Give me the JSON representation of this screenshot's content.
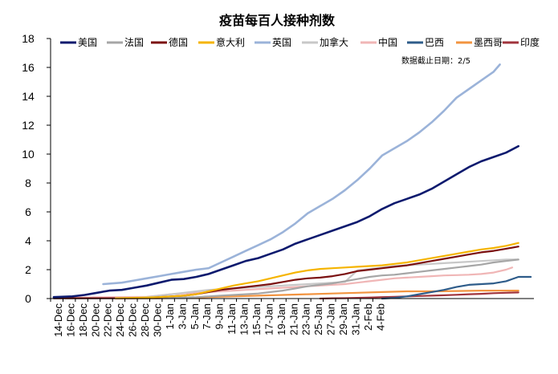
{
  "chart_data": {
    "type": "line",
    "title": "疫苗每百人接种剂数",
    "annotation": "数据截止日期：2/5",
    "xlabel": "",
    "ylabel": "",
    "ylim": [
      0,
      18
    ],
    "yticks": [
      0,
      2,
      4,
      6,
      8,
      10,
      12,
      14,
      16,
      18
    ],
    "grid": false,
    "legend_position": "top",
    "x_ticks": [
      "14-Dec",
      "16-Dec",
      "18-Dec",
      "20-Dec",
      "22-Dec",
      "24-Dec",
      "26-Dec",
      "28-Dec",
      "30-Dec",
      "1-Jan",
      "3-Jan",
      "5-Jan",
      "7-Jan",
      "9-Jan",
      "11-Jan",
      "13-Jan",
      "15-Jan",
      "17-Jan",
      "19-Jan",
      "21-Jan",
      "23-Jan",
      "25-Jan",
      "27-Jan",
      "29-Jan",
      "31-Jan",
      "2-Feb",
      "4-Feb"
    ],
    "series": [
      {
        "name": "美国",
        "color": "#0c1a6e",
        "width": 2.6,
        "points": [
          [
            0,
            0.1
          ],
          [
            3,
            0.15
          ],
          [
            5,
            0.25
          ],
          [
            7,
            0.4
          ],
          [
            9,
            0.55
          ],
          [
            11,
            0.6
          ],
          [
            13,
            0.75
          ],
          [
            15,
            0.9
          ],
          [
            17,
            1.1
          ],
          [
            19,
            1.3
          ],
          [
            21,
            1.35
          ],
          [
            23,
            1.5
          ],
          [
            25,
            1.7
          ],
          [
            27,
            2.0
          ],
          [
            29,
            2.3
          ],
          [
            31,
            2.6
          ],
          [
            33,
            2.8
          ],
          [
            35,
            3.1
          ],
          [
            37,
            3.4
          ],
          [
            39,
            3.8
          ],
          [
            41,
            4.1
          ],
          [
            43,
            4.4
          ],
          [
            45,
            4.7
          ],
          [
            47,
            5.0
          ],
          [
            49,
            5.3
          ],
          [
            51,
            5.7
          ],
          [
            53,
            6.2
          ],
          [
            55,
            6.6
          ],
          [
            57,
            6.9
          ],
          [
            59,
            7.2
          ],
          [
            61,
            7.6
          ],
          [
            63,
            8.1
          ],
          [
            65,
            8.6
          ],
          [
            67,
            9.1
          ],
          [
            69,
            9.5
          ],
          [
            71,
            9.8
          ],
          [
            73,
            10.1
          ],
          [
            75,
            10.55
          ]
        ]
      },
      {
        "name": "法国",
        "color": "#a6a6a6",
        "width": 2.2,
        "points": [
          [
            0,
            0.02
          ],
          [
            15,
            0.02
          ],
          [
            17,
            0.03
          ],
          [
            19,
            0.05
          ],
          [
            21,
            0.07
          ],
          [
            23,
            0.1
          ],
          [
            25,
            0.15
          ],
          [
            27,
            0.2
          ],
          [
            29,
            0.25
          ],
          [
            31,
            0.3
          ],
          [
            33,
            0.35
          ],
          [
            35,
            0.45
          ],
          [
            37,
            0.55
          ],
          [
            39,
            0.7
          ],
          [
            41,
            0.85
          ],
          [
            43,
            0.95
          ],
          [
            45,
            1.05
          ],
          [
            47,
            1.2
          ],
          [
            49,
            1.35
          ],
          [
            51,
            1.5
          ],
          [
            53,
            1.6
          ],
          [
            55,
            1.65
          ],
          [
            57,
            1.75
          ],
          [
            59,
            1.85
          ],
          [
            61,
            1.95
          ],
          [
            63,
            2.05
          ],
          [
            65,
            2.15
          ],
          [
            67,
            2.25
          ],
          [
            69,
            2.35
          ],
          [
            71,
            2.5
          ],
          [
            73,
            2.6
          ],
          [
            75,
            2.7
          ]
        ]
      },
      {
        "name": "德国",
        "color": "#7b1010",
        "width": 2.2,
        "points": [
          [
            0,
            0.02
          ],
          [
            13,
            0.03
          ],
          [
            15,
            0.05
          ],
          [
            17,
            0.1
          ],
          [
            19,
            0.15
          ],
          [
            21,
            0.2
          ],
          [
            23,
            0.3
          ],
          [
            25,
            0.45
          ],
          [
            27,
            0.6
          ],
          [
            29,
            0.7
          ],
          [
            31,
            0.8
          ],
          [
            33,
            0.9
          ],
          [
            35,
            1.0
          ],
          [
            37,
            1.15
          ],
          [
            39,
            1.3
          ],
          [
            41,
            1.4
          ],
          [
            43,
            1.45
          ],
          [
            45,
            1.55
          ],
          [
            47,
            1.7
          ],
          [
            49,
            1.9
          ],
          [
            51,
            2.0
          ],
          [
            53,
            2.1
          ],
          [
            55,
            2.2
          ],
          [
            57,
            2.3
          ],
          [
            59,
            2.45
          ],
          [
            61,
            2.6
          ],
          [
            63,
            2.75
          ],
          [
            65,
            2.9
          ],
          [
            67,
            3.05
          ],
          [
            69,
            3.2
          ],
          [
            71,
            3.3
          ],
          [
            73,
            3.45
          ],
          [
            75,
            3.6
          ]
        ]
      },
      {
        "name": "意大利",
        "color": "#f5b400",
        "width": 2.2,
        "points": [
          [
            10,
            0.02
          ],
          [
            13,
            0.05
          ],
          [
            15,
            0.07
          ],
          [
            17,
            0.1
          ],
          [
            19,
            0.15
          ],
          [
            21,
            0.2
          ],
          [
            23,
            0.3
          ],
          [
            25,
            0.5
          ],
          [
            27,
            0.7
          ],
          [
            29,
            0.9
          ],
          [
            31,
            1.05
          ],
          [
            33,
            1.2
          ],
          [
            35,
            1.4
          ],
          [
            37,
            1.6
          ],
          [
            39,
            1.8
          ],
          [
            41,
            1.95
          ],
          [
            43,
            2.05
          ],
          [
            45,
            2.1
          ],
          [
            47,
            2.15
          ],
          [
            49,
            2.2
          ],
          [
            51,
            2.25
          ],
          [
            53,
            2.3
          ],
          [
            55,
            2.4
          ],
          [
            57,
            2.5
          ],
          [
            59,
            2.65
          ],
          [
            61,
            2.8
          ],
          [
            63,
            2.95
          ],
          [
            65,
            3.1
          ],
          [
            67,
            3.25
          ],
          [
            69,
            3.4
          ],
          [
            71,
            3.5
          ],
          [
            73,
            3.65
          ],
          [
            75,
            3.85
          ]
        ]
      },
      {
        "name": "英国",
        "color": "#9bb3d9",
        "width": 2.6,
        "points": [
          [
            8,
            1.0
          ],
          [
            11,
            1.1
          ],
          [
            13,
            1.25
          ],
          [
            15,
            1.4
          ],
          [
            17,
            1.55
          ],
          [
            19,
            1.7
          ],
          [
            21,
            1.85
          ],
          [
            23,
            2.0
          ],
          [
            25,
            2.1
          ],
          [
            27,
            2.5
          ],
          [
            29,
            2.9
          ],
          [
            31,
            3.3
          ],
          [
            33,
            3.7
          ],
          [
            35,
            4.1
          ],
          [
            37,
            4.6
          ],
          [
            39,
            5.2
          ],
          [
            41,
            5.9
          ],
          [
            43,
            6.4
          ],
          [
            45,
            6.9
          ],
          [
            47,
            7.5
          ],
          [
            49,
            8.2
          ],
          [
            51,
            9.0
          ],
          [
            53,
            9.9
          ],
          [
            55,
            10.4
          ],
          [
            57,
            10.9
          ],
          [
            59,
            11.5
          ],
          [
            61,
            12.2
          ],
          [
            63,
            13.0
          ],
          [
            65,
            13.9
          ],
          [
            67,
            14.5
          ],
          [
            69,
            15.1
          ],
          [
            71,
            15.7
          ],
          [
            72,
            16.2
          ]
        ]
      },
      {
        "name": "加拿大",
        "color": "#c8c8c8",
        "width": 2.2,
        "points": [
          [
            0,
            0.02
          ],
          [
            13,
            0.03
          ],
          [
            15,
            0.1
          ],
          [
            17,
            0.2
          ],
          [
            19,
            0.3
          ],
          [
            21,
            0.4
          ],
          [
            23,
            0.5
          ],
          [
            25,
            0.6
          ],
          [
            27,
            0.65
          ],
          [
            29,
            0.7
          ],
          [
            31,
            0.75
          ],
          [
            33,
            0.8
          ],
          [
            35,
            0.85
          ],
          [
            37,
            0.9
          ],
          [
            39,
            0.95
          ],
          [
            41,
            1.0
          ],
          [
            43,
            1.05
          ],
          [
            45,
            1.1
          ],
          [
            47,
            1.15
          ],
          [
            49,
            1.95
          ],
          [
            51,
            2.05
          ],
          [
            53,
            2.15
          ],
          [
            55,
            2.25
          ],
          [
            57,
            2.3
          ],
          [
            59,
            2.35
          ],
          [
            61,
            2.4
          ],
          [
            63,
            2.45
          ],
          [
            65,
            2.5
          ],
          [
            67,
            2.55
          ],
          [
            69,
            2.6
          ],
          [
            71,
            2.65
          ],
          [
            73,
            2.7
          ],
          [
            75,
            2.7
          ]
        ]
      },
      {
        "name": "中国",
        "color": "#f0b6b6",
        "width": 2.2,
        "points": [
          [
            0,
            0.05
          ],
          [
            5,
            0.07
          ],
          [
            10,
            0.1
          ],
          [
            15,
            0.12
          ],
          [
            19,
            0.3
          ],
          [
            21,
            0.35
          ],
          [
            23,
            0.4
          ],
          [
            25,
            0.45
          ],
          [
            27,
            0.5
          ],
          [
            29,
            0.55
          ],
          [
            31,
            0.6
          ],
          [
            33,
            0.65
          ],
          [
            35,
            0.7
          ],
          [
            37,
            0.75
          ],
          [
            39,
            0.8
          ],
          [
            41,
            0.85
          ],
          [
            43,
            0.9
          ],
          [
            45,
            0.95
          ],
          [
            47,
            1.0
          ],
          [
            49,
            1.1
          ],
          [
            51,
            1.2
          ],
          [
            53,
            1.3
          ],
          [
            55,
            1.4
          ],
          [
            57,
            1.45
          ],
          [
            59,
            1.5
          ],
          [
            61,
            1.55
          ],
          [
            63,
            1.6
          ],
          [
            65,
            1.62
          ],
          [
            67,
            1.65
          ],
          [
            69,
            1.7
          ],
          [
            71,
            1.8
          ],
          [
            73,
            2.0
          ],
          [
            74,
            2.15
          ]
        ]
      },
      {
        "name": "巴西",
        "color": "#2e5c8a",
        "width": 2.2,
        "points": [
          [
            53,
            0.0
          ],
          [
            55,
            0.05
          ],
          [
            57,
            0.15
          ],
          [
            59,
            0.3
          ],
          [
            61,
            0.45
          ],
          [
            63,
            0.6
          ],
          [
            65,
            0.8
          ],
          [
            67,
            0.95
          ],
          [
            69,
            1.0
          ],
          [
            71,
            1.05
          ],
          [
            73,
            1.2
          ],
          [
            75,
            1.5
          ],
          [
            77,
            1.5
          ]
        ]
      },
      {
        "name": "墨西哥",
        "color": "#f29440",
        "width": 2.2,
        "points": [
          [
            10,
            0.0
          ],
          [
            17,
            0.02
          ],
          [
            21,
            0.05
          ],
          [
            25,
            0.1
          ],
          [
            29,
            0.15
          ],
          [
            33,
            0.2
          ],
          [
            37,
            0.25
          ],
          [
            41,
            0.3
          ],
          [
            45,
            0.35
          ],
          [
            49,
            0.4
          ],
          [
            53,
            0.45
          ],
          [
            57,
            0.5
          ],
          [
            61,
            0.5
          ],
          [
            65,
            0.52
          ],
          [
            69,
            0.55
          ],
          [
            73,
            0.55
          ],
          [
            75,
            0.55
          ]
        ]
      },
      {
        "name": "印度",
        "color": "#a0343c",
        "width": 2.2,
        "points": [
          [
            43,
            0.0
          ],
          [
            45,
            0.02
          ],
          [
            47,
            0.03
          ],
          [
            49,
            0.05
          ],
          [
            51,
            0.07
          ],
          [
            53,
            0.1
          ],
          [
            55,
            0.12
          ],
          [
            57,
            0.15
          ],
          [
            59,
            0.18
          ],
          [
            61,
            0.2
          ],
          [
            63,
            0.23
          ],
          [
            65,
            0.26
          ],
          [
            67,
            0.3
          ],
          [
            69,
            0.33
          ],
          [
            71,
            0.37
          ],
          [
            73,
            0.4
          ],
          [
            75,
            0.42
          ]
        ]
      }
    ]
  }
}
